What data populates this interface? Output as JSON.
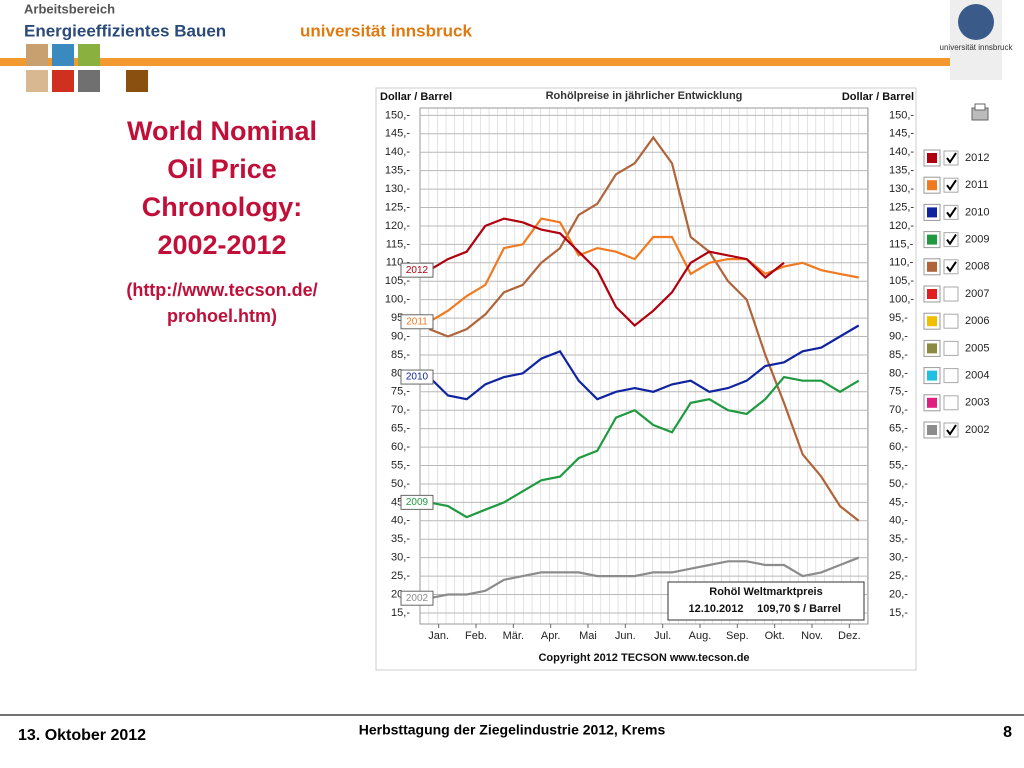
{
  "header": {
    "dept": "Arbeitsbereich",
    "group": "Energieeffizientes Bauen",
    "university": "universität innsbruck",
    "logo_text": "universität innsbruck"
  },
  "slide": {
    "title_lines": [
      "World Nominal",
      "Oil Price",
      "Chronology:",
      "2002-2012"
    ],
    "source_lines": [
      "(http://www.tecson.de/",
      "prohoel.htm)"
    ]
  },
  "chart_data": {
    "type": "line",
    "title": "Rohölpreise in jährlicher Entwicklung",
    "y_label": "Dollar / Barrel",
    "y2_label": "Dollar / Barrel",
    "x": [
      0.25,
      0.75,
      1.25,
      1.75,
      2.25,
      2.75,
      3.25,
      3.75,
      4.25,
      4.75,
      5.25,
      5.75,
      6.25,
      6.75,
      7.25,
      7.75,
      8.25,
      8.75,
      9.25,
      9.75,
      10.25,
      10.75,
      11.25,
      11.75
    ],
    "xlim": [
      0,
      12
    ],
    "xticks": [
      {
        "value": 0.5,
        "label": "Jan."
      },
      {
        "value": 1.5,
        "label": "Feb."
      },
      {
        "value": 2.5,
        "label": "Mär."
      },
      {
        "value": 3.5,
        "label": "Apr."
      },
      {
        "value": 4.5,
        "label": "Mai"
      },
      {
        "value": 5.5,
        "label": "Jun."
      },
      {
        "value": 6.5,
        "label": "Jul."
      },
      {
        "value": 7.5,
        "label": "Aug."
      },
      {
        "value": 8.5,
        "label": "Sep."
      },
      {
        "value": 9.5,
        "label": "Okt."
      },
      {
        "value": 10.5,
        "label": "Nov."
      },
      {
        "value": 11.5,
        "label": "Dez."
      }
    ],
    "ylim": [
      12,
      152
    ],
    "yticks": [
      {
        "value": 150,
        "label": "150,-"
      },
      {
        "value": 145,
        "label": "145,-"
      },
      {
        "value": 140,
        "label": "140,-"
      },
      {
        "value": 135,
        "label": "135,-"
      },
      {
        "value": 130,
        "label": "130,-"
      },
      {
        "value": 125,
        "label": "125,-"
      },
      {
        "value": 120,
        "label": "120,-"
      },
      {
        "value": 115,
        "label": "115,-"
      },
      {
        "value": 110,
        "label": "110,-"
      },
      {
        "value": 105,
        "label": "105,-"
      },
      {
        "value": 100,
        "label": "100,-"
      },
      {
        "value": 95,
        "label": "95,-"
      },
      {
        "value": 90,
        "label": "90,-"
      },
      {
        "value": 85,
        "label": "85,-"
      },
      {
        "value": 80,
        "label": "80,-"
      },
      {
        "value": 75,
        "label": "75,-"
      },
      {
        "value": 70,
        "label": "70,-"
      },
      {
        "value": 65,
        "label": "65,-"
      },
      {
        "value": 60,
        "label": "60,-"
      },
      {
        "value": 55,
        "label": "55,-"
      },
      {
        "value": 50,
        "label": "50,-"
      },
      {
        "value": 45,
        "label": "45,-"
      },
      {
        "value": 40,
        "label": "40,-"
      },
      {
        "value": 35,
        "label": "35,-"
      },
      {
        "value": 30,
        "label": "30,-"
      },
      {
        "value": 25,
        "label": "25,-"
      },
      {
        "value": 20,
        "label": "20,-"
      },
      {
        "value": 15,
        "label": "15,-"
      }
    ],
    "grid": true,
    "series": [
      {
        "name": "2002",
        "color": "#8c8c8c",
        "inline_label": true,
        "values": [
          19,
          20,
          20,
          21,
          24,
          25,
          26,
          26,
          26,
          25,
          25,
          25,
          26,
          26,
          27,
          28,
          29,
          29,
          28,
          28,
          25,
          26,
          28,
          30
        ]
      },
      {
        "name": "2008",
        "color": "#b0643a",
        "inline_label": false,
        "values": [
          92,
          90,
          92,
          96,
          102,
          104,
          110,
          114,
          123,
          126,
          134,
          137,
          144,
          137,
          117,
          113,
          105,
          100,
          85,
          72,
          58,
          52,
          44,
          40
        ]
      },
      {
        "name": "2009",
        "color": "#1f9a40",
        "inline_label": true,
        "values": [
          45,
          44,
          41,
          43,
          45,
          48,
          51,
          52,
          57,
          59,
          68,
          70,
          66,
          64,
          72,
          73,
          70,
          69,
          73,
          79,
          78,
          78,
          75,
          78
        ]
      },
      {
        "name": "2010",
        "color": "#1024a0",
        "inline_label": true,
        "values": [
          79,
          74,
          73,
          77,
          79,
          80,
          84,
          86,
          78,
          73,
          75,
          76,
          75,
          77,
          78,
          75,
          76,
          78,
          82,
          83,
          86,
          87,
          90,
          93
        ]
      },
      {
        "name": "2011",
        "color": "#f07a22",
        "inline_label": true,
        "values": [
          94,
          97,
          101,
          104,
          114,
          115,
          122,
          121,
          112,
          114,
          113,
          111,
          117,
          117,
          107,
          110,
          111,
          111,
          107,
          109,
          110,
          108,
          107,
          106
        ]
      },
      {
        "name": "2012",
        "color": "#b00010",
        "inline_label": true,
        "values": [
          108,
          111,
          113,
          120,
          122,
          121,
          119,
          118,
          113,
          108,
          98,
          93,
          97,
          102,
          110,
          113,
          112,
          111,
          106,
          110,
          null,
          null,
          null,
          null
        ]
      }
    ],
    "box": {
      "title": "Rohöl Weltmarktpreis",
      "date": "12.10.2012",
      "price": "109,70 $ / Barrel"
    },
    "copyright": "Copyright 2012 TECSON  www.tecson.de"
  },
  "legend": [
    {
      "name": "2012",
      "color": "#b00010",
      "checked": true
    },
    {
      "name": "2011",
      "color": "#f07a22",
      "checked": true
    },
    {
      "name": "2010",
      "color": "#1024a0",
      "checked": true
    },
    {
      "name": "2009",
      "color": "#1f9a40",
      "checked": true
    },
    {
      "name": "2008",
      "color": "#b0643a",
      "checked": true
    },
    {
      "name": "2007",
      "color": "#e02020",
      "checked": false
    },
    {
      "name": "2006",
      "color": "#f0c000",
      "checked": false
    },
    {
      "name": "2005",
      "color": "#8a8a40",
      "checked": false
    },
    {
      "name": "2004",
      "color": "#20c0e0",
      "checked": false
    },
    {
      "name": "2003",
      "color": "#e02080",
      "checked": false
    },
    {
      "name": "2002",
      "color": "#8c8c8c",
      "checked": true
    }
  ],
  "footer": {
    "date": "13. Oktober 2012",
    "event": "Herbsttagung der Ziegelindustrie 2012, Krems",
    "page": "8"
  }
}
